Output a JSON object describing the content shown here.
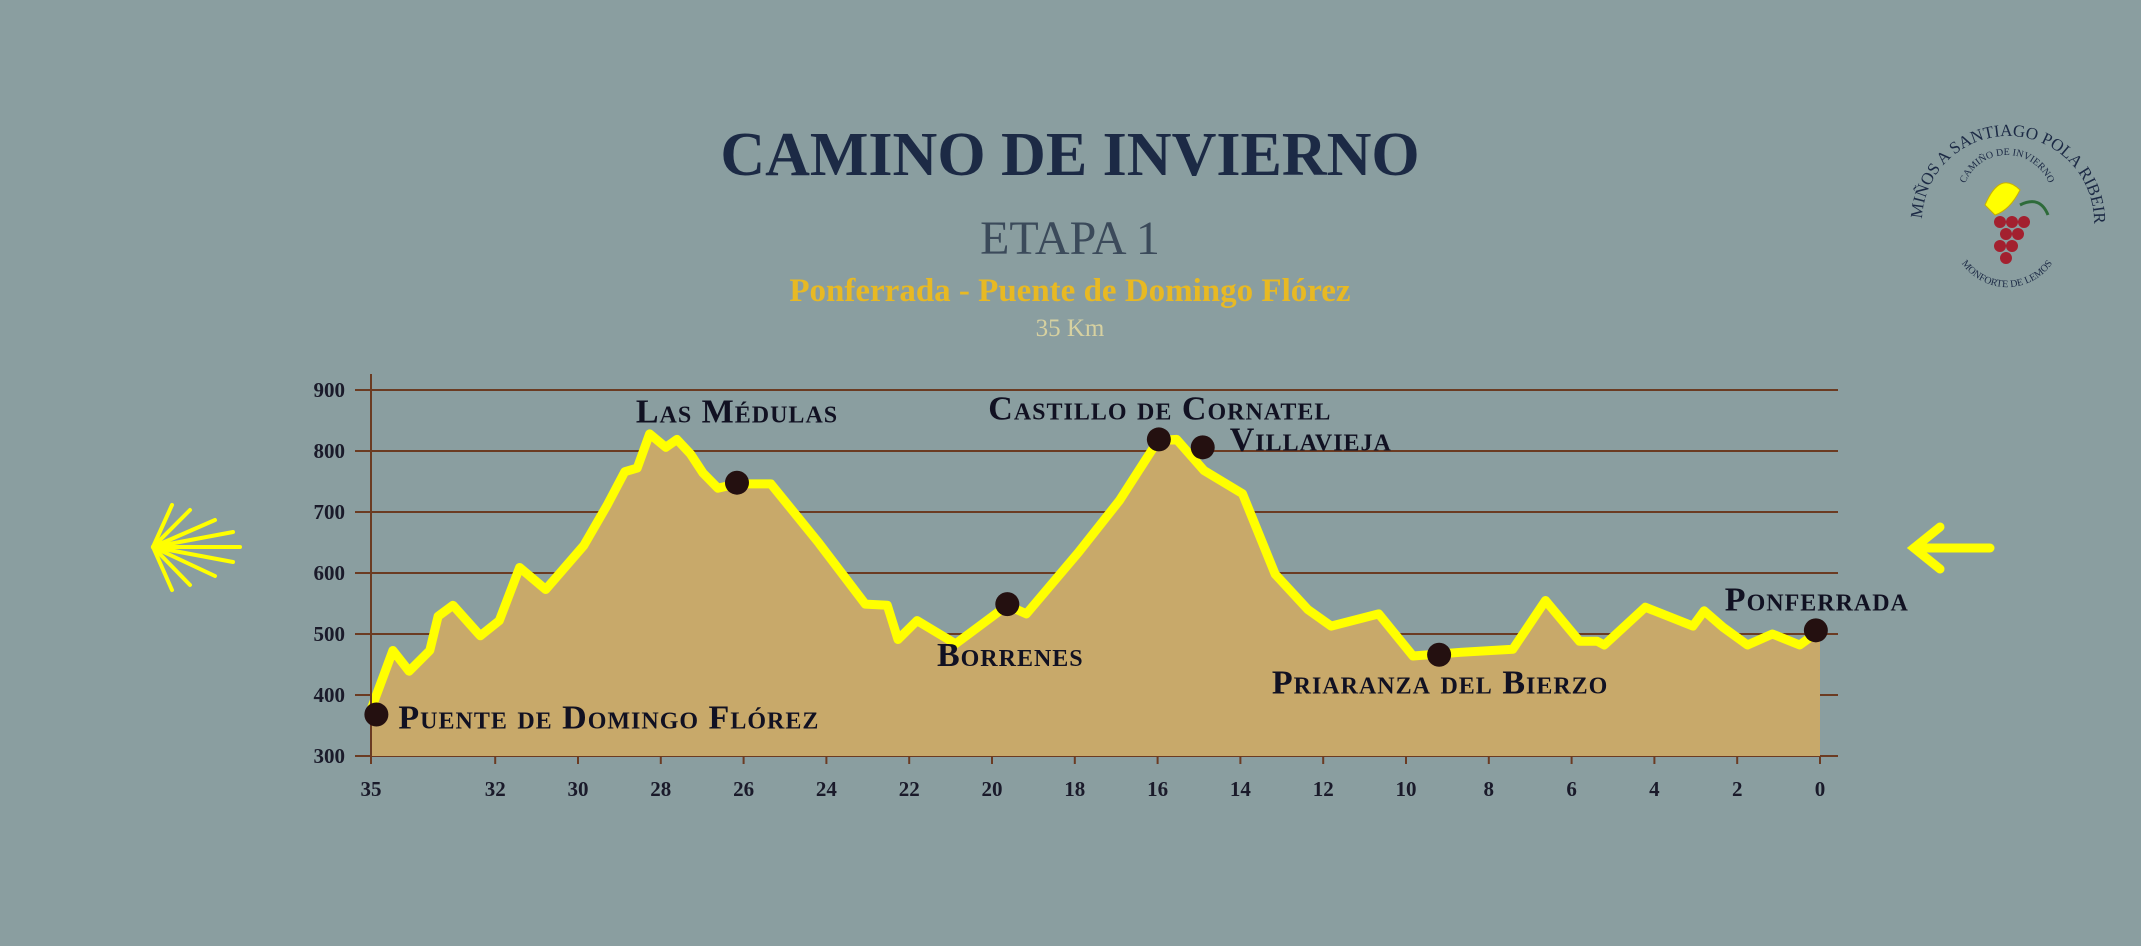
{
  "chart_data": {
    "type": "area",
    "title": "CAMINO DE INVIERNO",
    "subtitle": "ETAPA 1",
    "route": "Ponferrada - Puente de Domingo Flórez",
    "distance": "35 Km",
    "x": [
      35.0,
      34.47,
      34.08,
      33.58,
      33.38,
      33.02,
      32.36,
      31.9,
      31.41,
      30.78,
      29.86,
      29.29,
      28.87,
      28.57,
      28.27,
      27.88,
      27.61,
      27.28,
      26.98,
      26.62,
      26.16,
      25.34,
      24.18,
      23.06,
      22.53,
      22.27,
      21.81,
      20.88,
      19.63,
      19.17,
      17.91,
      16.92,
      15.99,
      15.54,
      14.88,
      13.95,
      13.16,
      12.37,
      11.81,
      10.66,
      9.83,
      8.68,
      7.42,
      6.63,
      5.81,
      5.38,
      5.21,
      4.22,
      3.07,
      2.8,
      2.34,
      1.75,
      1.15,
      0.49,
      0
    ],
    "values": [
      376,
      473,
      439,
      473,
      529,
      547,
      497,
      522,
      609,
      573,
      645,
      712,
      766,
      772,
      828,
      806,
      819,
      795,
      764,
      739,
      746,
      746,
      649,
      549,
      547,
      491,
      522,
      484,
      547,
      533,
      634,
      719,
      817,
      819,
      768,
      730,
      598,
      540,
      513,
      533,
      464,
      470,
      475,
      555,
      488,
      488,
      482,
      544,
      513,
      538,
      511,
      482,
      500,
      482,
      506
    ],
    "color": "#ffff00",
    "fill_color": "#c8a96a",
    "xlim": [
      35,
      0
    ],
    "ylim": [
      300,
      900
    ],
    "xticks": [
      35,
      32,
      30,
      28,
      26,
      24,
      22,
      20,
      18,
      16,
      14,
      12,
      10,
      8,
      6,
      4,
      2,
      0
    ],
    "yticks": [
      300,
      400,
      500,
      600,
      700,
      800,
      900
    ],
    "grid": true,
    "waypoints": [
      {
        "name": "Puente de Domingo Flórez",
        "x": 34.87,
        "y": 368
      },
      {
        "name": "Las Médulas",
        "x": 26.16,
        "y": 748
      },
      {
        "name": "Borrenes",
        "x": 19.63,
        "y": 549
      },
      {
        "name": "Castillo de Cornatel",
        "x": 15.97,
        "y": 819
      },
      {
        "name": "Villavieja",
        "x": 14.91,
        "y": 806
      },
      {
        "name": "Priaranza del Bierzo",
        "x": 9.2,
        "y": 466
      },
      {
        "name": "Ponferrada",
        "x": 0.1,
        "y": 506
      }
    ]
  },
  "logo": {
    "ring": "ASOC. CAMIÑOS A SANTIAGO POLA RIBEIRA SACRA",
    "inner": "CAMIÑO DE INVIERNO",
    "bottom": "MONFORTE DE LEMOS"
  }
}
